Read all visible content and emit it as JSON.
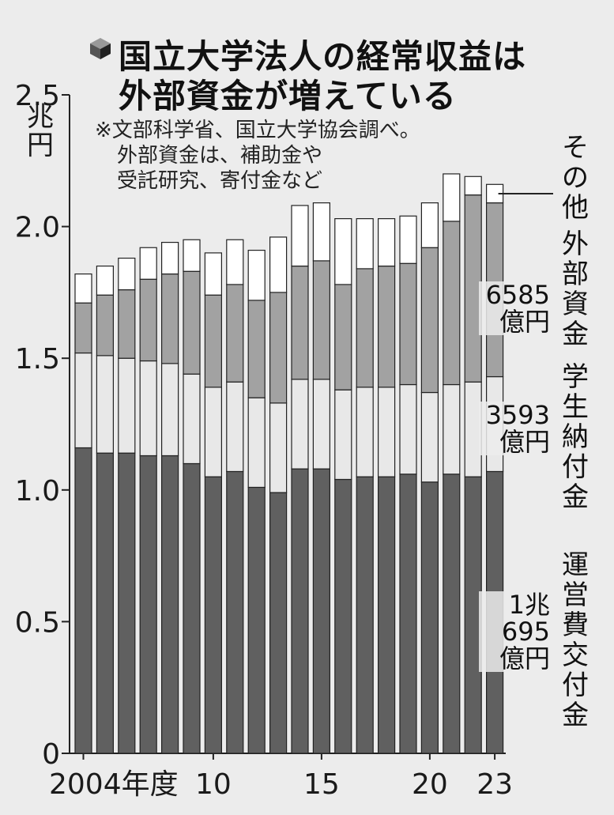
{
  "title": {
    "line1": "国立大学法人の経常収益は",
    "line2": "外部資金が増えている"
  },
  "note": {
    "line1": "※文部科学省、国立大学協会調べ。",
    "line2": "外部資金は、補助金や",
    "line3": "受託研究、寄付金など"
  },
  "colors": {
    "運営費交付金": "#606060",
    "学生納付金": "#e8e8e8",
    "外部資金": "#a2a2a2",
    "その他": "#ffffff"
  },
  "chart_data": {
    "type": "bar",
    "stacked": true,
    "y_unit": "兆円",
    "ylim": [
      0,
      2.5
    ],
    "y_ticks": [
      "0",
      "0.5",
      "1.0",
      "1.5",
      "2.0",
      "2.5"
    ],
    "x_tick_labels": [
      "2004年度",
      "10",
      "15",
      "20",
      "23"
    ],
    "categories": [
      "2004",
      "2005",
      "2006",
      "2007",
      "2008",
      "2009",
      "2010",
      "2011",
      "2012",
      "2013",
      "2014",
      "2015",
      "2016",
      "2017",
      "2018",
      "2019",
      "2020",
      "2021",
      "2022",
      "2023"
    ],
    "series": [
      {
        "name": "運営費交付金",
        "values": [
          1.16,
          1.14,
          1.14,
          1.13,
          1.13,
          1.1,
          1.05,
          1.07,
          1.01,
          0.99,
          1.08,
          1.08,
          1.04,
          1.05,
          1.05,
          1.06,
          1.03,
          1.06,
          1.05,
          1.07
        ]
      },
      {
        "name": "学生納付金",
        "values": [
          0.36,
          0.37,
          0.36,
          0.36,
          0.35,
          0.34,
          0.34,
          0.34,
          0.34,
          0.34,
          0.34,
          0.34,
          0.34,
          0.34,
          0.34,
          0.34,
          0.34,
          0.34,
          0.36,
          0.36
        ]
      },
      {
        "name": "外部資金",
        "values": [
          0.19,
          0.23,
          0.26,
          0.31,
          0.34,
          0.39,
          0.35,
          0.37,
          0.37,
          0.42,
          0.43,
          0.45,
          0.4,
          0.45,
          0.46,
          0.46,
          0.55,
          0.62,
          0.71,
          0.66
        ]
      },
      {
        "name": "その他",
        "values": [
          0.11,
          0.11,
          0.12,
          0.12,
          0.12,
          0.12,
          0.16,
          0.17,
          0.19,
          0.21,
          0.23,
          0.22,
          0.25,
          0.19,
          0.18,
          0.18,
          0.17,
          0.18,
          0.07,
          0.07
        ]
      }
    ],
    "series_labels": {
      "運営費交付金": "運営費交付金",
      "学生納付金": "学生納付金",
      "外部資金": "外部資金",
      "その他": "その他"
    },
    "annotations": {
      "外部資金": [
        "6585",
        "億円"
      ],
      "学生納付金": [
        "3593",
        "億円"
      ],
      "運営費交付金": [
        "1兆",
        "695",
        "億円"
      ]
    }
  }
}
